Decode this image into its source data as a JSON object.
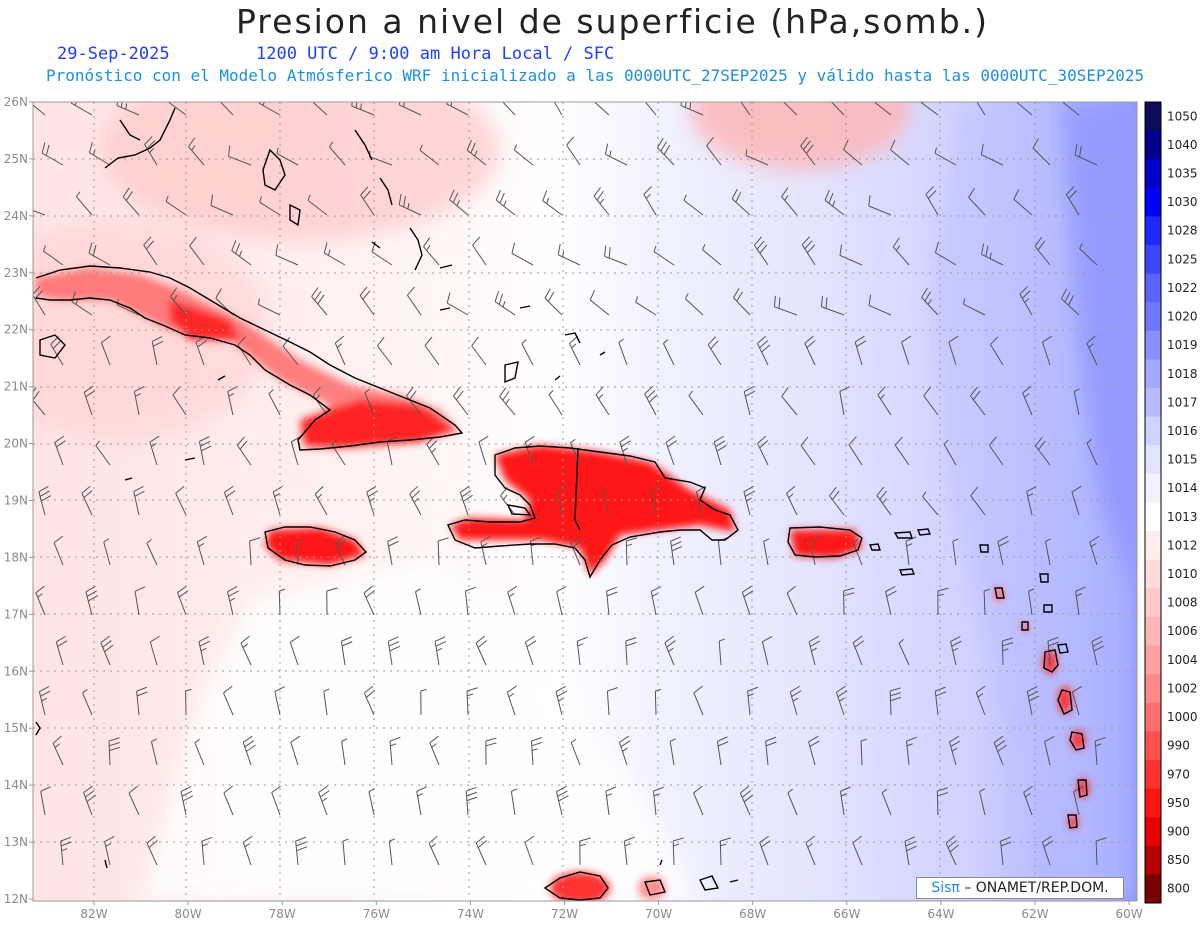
{
  "title": "Presion a nivel de superficie (hPa,somb.)",
  "date": "29-Sep-2025",
  "valid_time": "1200 UTC / 9:00 am Hora Local / SFC",
  "forecast_info": "Pronóstico con el Modelo Atmósferico WRF inicializado a las 0000UTC_27SEP2025 y válido hasta las  0000UTC_30SEP2025",
  "lat_labels": [
    "26N",
    "25N",
    "24N",
    "23N",
    "22N",
    "21N",
    "20N",
    "19N",
    "18N",
    "17N",
    "16N",
    "15N",
    "14N",
    "13N",
    "12N"
  ],
  "lon_labels": [
    "82W",
    "80W",
    "78W",
    "76W",
    "74W",
    "72W",
    "70W",
    "68W",
    "66W",
    "64W",
    "62W",
    "60W"
  ],
  "colorbar": {
    "levels": [
      "1050",
      "1040",
      "1035",
      "1030",
      "1028",
      "1025",
      "1022",
      "1020",
      "1019",
      "1018",
      "1017",
      "1016",
      "1015",
      "1014",
      "1013",
      "1012",
      "1010",
      "1008",
      "1006",
      "1004",
      "1002",
      "1000",
      "990",
      "970",
      "950",
      "900",
      "850",
      "800"
    ],
    "colors": [
      "#0a0a5a",
      "#00008c",
      "#0000c8",
      "#0000ff",
      "#1e28ff",
      "#3c46ff",
      "#5a64ff",
      "#7078ff",
      "#8890ff",
      "#a0a8ff",
      "#b8bcff",
      "#d0d2ff",
      "#e2e4ff",
      "#f2f2ff",
      "#ffffff",
      "#ffecec",
      "#ffdcdc",
      "#ffcaca",
      "#ffb6b6",
      "#ffa0a0",
      "#ff8888",
      "#ff6e6e",
      "#ff5050",
      "#ff3232",
      "#ff1414",
      "#e60000",
      "#b40000",
      "#780000"
    ]
  },
  "credit": {
    "logo": "Sisπ",
    "text": " – ONAMET/REP.DOM."
  }
}
